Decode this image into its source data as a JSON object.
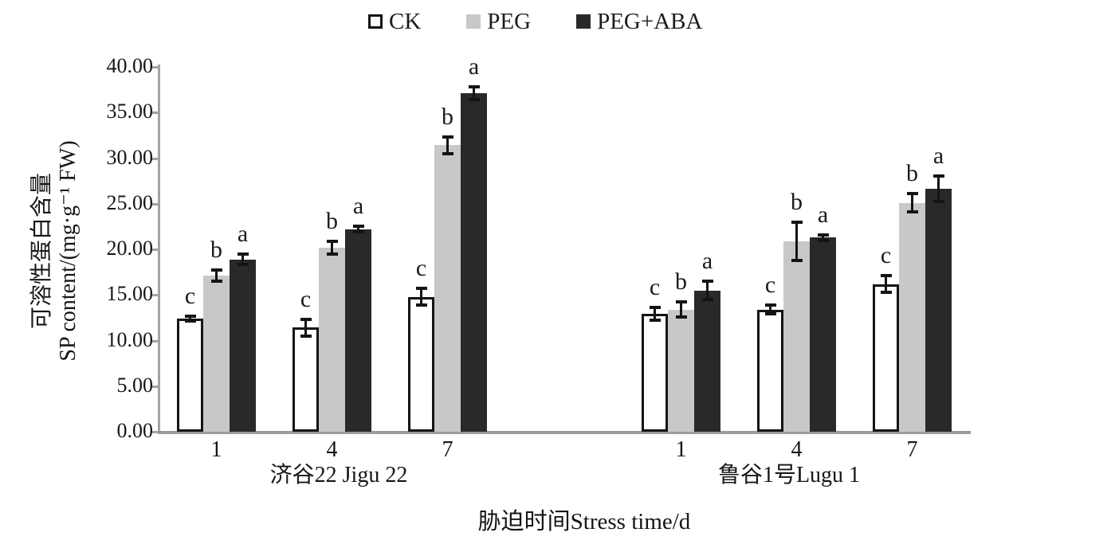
{
  "figure": {
    "xlabel": "胁迫时间Stress time/d",
    "ylabel_line1": "可溶性蛋白含量",
    "ylabel_line2": "SP content/(mg·g⁻¹ FW)"
  },
  "colors": {
    "axis": "#a3a3a3",
    "baseline": "#9b9b9b",
    "text": "#161616",
    "error_bar": "#141414",
    "ck_fill": "#ffffff",
    "ck_stroke": "#141414",
    "peg_fill": "#c7c8ca",
    "peg_aba_fill": "#2a282a"
  },
  "chart_data": {
    "type": "bar",
    "title": "",
    "xlabel": "胁迫时间Stress time/d",
    "ylabel": "可溶性蛋白含量 SP content/(mg·g⁻¹ FW)",
    "ylim": [
      0,
      40
    ],
    "ytick_interval": 5,
    "ytick_labels": [
      "0.00",
      "5.00",
      "10.00",
      "15.00",
      "20.00",
      "25.00",
      "30.00",
      "35.00",
      "40.00"
    ],
    "grid": false,
    "legend_position": "top-center",
    "error_bars": true,
    "series": [
      {
        "name": "CK",
        "fill": "#ffffff",
        "stroke": "#141414"
      },
      {
        "name": "PEG",
        "fill": "#c7c8ca",
        "stroke": "#c7c8ca"
      },
      {
        "name": "PEG+ABA",
        "fill": "#2a282a",
        "stroke": "#2a282a"
      }
    ],
    "varieties": [
      {
        "label": "济谷22 Jigu 22",
        "groups": [
          {
            "time": "1",
            "bars": [
              {
                "series": "CK",
                "value": 12.4,
                "error": 0.3,
                "letter": "c"
              },
              {
                "series": "PEG",
                "value": 17.1,
                "error": 0.6,
                "letter": "b"
              },
              {
                "series": "PEG+ABA",
                "value": 18.9,
                "error": 0.6,
                "letter": "a"
              }
            ]
          },
          {
            "time": "4",
            "bars": [
              {
                "series": "CK",
                "value": 11.4,
                "error": 0.9,
                "letter": "c"
              },
              {
                "series": "PEG",
                "value": 20.2,
                "error": 0.7,
                "letter": "b"
              },
              {
                "series": "PEG+ABA",
                "value": 22.2,
                "error": 0.3,
                "letter": "a"
              }
            ]
          },
          {
            "time": "7",
            "bars": [
              {
                "series": "CK",
                "value": 14.8,
                "error": 0.9,
                "letter": "c"
              },
              {
                "series": "PEG",
                "value": 31.4,
                "error": 0.9,
                "letter": "b"
              },
              {
                "series": "PEG+ABA",
                "value": 37.1,
                "error": 0.7,
                "letter": "a"
              }
            ]
          }
        ]
      },
      {
        "label": "鲁谷1号Lugu 1",
        "groups": [
          {
            "time": "1",
            "bars": [
              {
                "series": "CK",
                "value": 12.9,
                "error": 0.7,
                "letter": "c"
              },
              {
                "series": "PEG",
                "value": 13.4,
                "error": 0.8,
                "letter": "b"
              },
              {
                "series": "PEG+ABA",
                "value": 15.5,
                "error": 1.0,
                "letter": "a"
              }
            ]
          },
          {
            "time": "4",
            "bars": [
              {
                "series": "CK",
                "value": 13.4,
                "error": 0.5,
                "letter": "c"
              },
              {
                "series": "PEG",
                "value": 20.9,
                "error": 2.1,
                "letter": "b"
              },
              {
                "series": "PEG+ABA",
                "value": 21.3,
                "error": 0.3,
                "letter": "a"
              }
            ]
          },
          {
            "time": "7",
            "bars": [
              {
                "series": "CK",
                "value": 16.2,
                "error": 0.9,
                "letter": "c"
              },
              {
                "series": "PEG",
                "value": 25.1,
                "error": 1.0,
                "letter": "b"
              },
              {
                "series": "PEG+ABA",
                "value": 26.6,
                "error": 1.4,
                "letter": "a"
              }
            ]
          }
        ]
      }
    ]
  }
}
